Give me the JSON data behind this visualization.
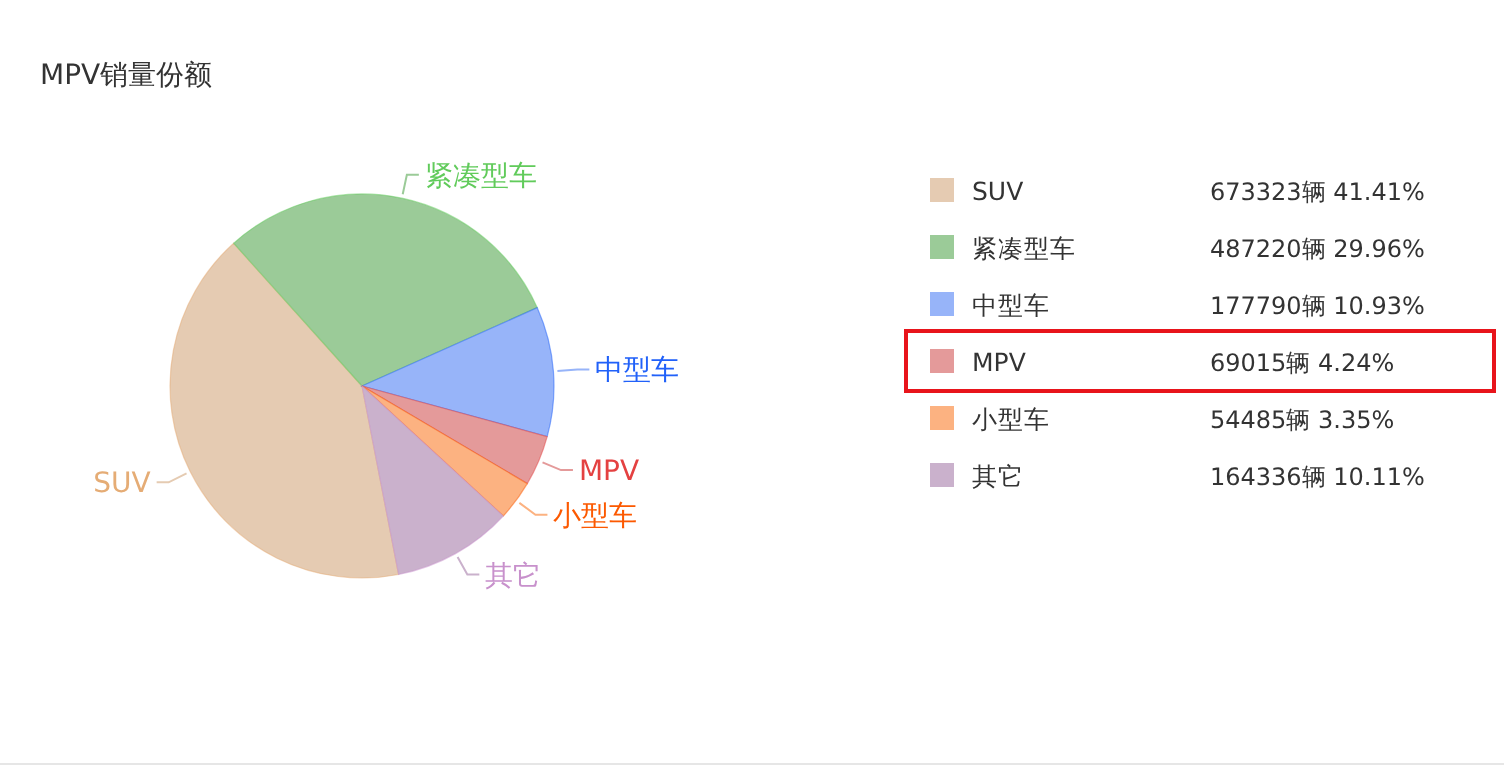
{
  "chart_data": {
    "type": "pie",
    "title": "MPV销量份额",
    "categories": [
      "SUV",
      "紧凑型车",
      "中型车",
      "MPV",
      "小型车",
      "其它"
    ],
    "values": [
      673323,
      487220,
      177790,
      69015,
      54485,
      164336
    ],
    "colors": [
      "#e5cbb2",
      "#9bcb98",
      "#97b4f9",
      "#e49a9a",
      "#fcb281",
      "#cab1cc"
    ],
    "value_labels": [
      "673323辆 41.41%",
      "487220辆 29.96%",
      "177790辆 10.93%",
      "69015辆 4.24%",
      "54485辆 3.35%",
      "164336辆 10.11%"
    ],
    "legend": "right"
  }
}
